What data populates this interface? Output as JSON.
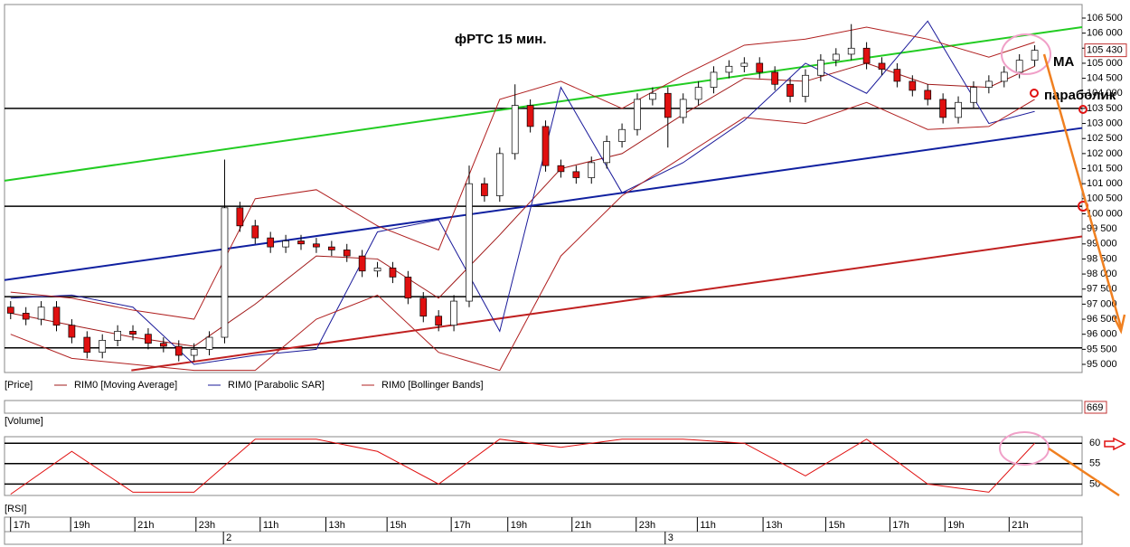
{
  "chart_data": {
    "type": "candlestick",
    "title": "фРТС   15 мин.",
    "price_name": "[Price]",
    "up_color": "#ffffff",
    "down_color": "#e01010",
    "open": [
      96900,
      96700,
      96500,
      96900,
      96300,
      95900,
      95400,
      95800,
      96100,
      96000,
      95700,
      95600,
      95300,
      95500,
      95900,
      100200,
      99600,
      99200,
      98900,
      99100,
      99000,
      98900,
      98800,
      98600,
      98100,
      98200,
      97900,
      97200,
      96600,
      96300,
      97100,
      101000,
      100600,
      102000,
      103600,
      102900,
      101600,
      101400,
      101200,
      101700,
      102400,
      102800,
      103800,
      104000,
      103200,
      103800,
      104200,
      104700,
      104900,
      105000,
      104700,
      104300,
      103900,
      104600,
      105100,
      105300,
      105500,
      105000,
      104800,
      104400,
      104100,
      103800,
      103200,
      103700,
      104200,
      104400,
      104700,
      105100
    ],
    "high": [
      97100,
      96900,
      97100,
      97100,
      96500,
      96100,
      96000,
      96300,
      96300,
      96200,
      95900,
      95800,
      95700,
      96100,
      101800,
      100400,
      99800,
      99400,
      99300,
      99300,
      99200,
      99100,
      99000,
      98800,
      98400,
      98400,
      98100,
      97400,
      96800,
      97300,
      101600,
      101200,
      102200,
      104300,
      103800,
      103100,
      101800,
      101600,
      101900,
      102600,
      103000,
      104000,
      104200,
      104200,
      104000,
      104400,
      104900,
      105100,
      105200,
      105200,
      104900,
      104500,
      104800,
      105300,
      105500,
      106300,
      105700,
      105200,
      105000,
      104600,
      104300,
      104000,
      103900,
      104400,
      104600,
      104900,
      105300,
      105600
    ],
    "low": [
      96500,
      96300,
      96300,
      96100,
      95700,
      95200,
      95200,
      95600,
      95800,
      95500,
      95400,
      95100,
      95100,
      95300,
      95700,
      99400,
      99000,
      98700,
      98700,
      98800,
      98700,
      98600,
      98400,
      97900,
      97900,
      97700,
      97000,
      96400,
      96100,
      96100,
      96900,
      100400,
      100400,
      101800,
      102700,
      101400,
      101200,
      101000,
      101000,
      101500,
      102200,
      102600,
      103600,
      102200,
      103000,
      103600,
      104000,
      104500,
      104700,
      104500,
      104100,
      103700,
      103700,
      104400,
      104900,
      105100,
      104800,
      104600,
      104200,
      103900,
      103600,
      103000,
      103000,
      103500,
      104000,
      104200,
      104500,
      104900
    ],
    "close": [
      96700,
      96500,
      96900,
      96300,
      95900,
      95400,
      95800,
      96100,
      96000,
      95700,
      95600,
      95300,
      95500,
      95900,
      100200,
      99600,
      99200,
      98900,
      99100,
      99000,
      98900,
      98800,
      98600,
      98100,
      98200,
      97900,
      97200,
      96600,
      96300,
      97100,
      101000,
      100600,
      102000,
      103600,
      102900,
      101600,
      101400,
      101200,
      101700,
      102400,
      102800,
      103800,
      104000,
      103200,
      103800,
      104200,
      104700,
      104900,
      105000,
      104700,
      104300,
      103900,
      104600,
      105100,
      105300,
      105500,
      105000,
      104800,
      104400,
      104100,
      103800,
      103200,
      103700,
      104200,
      104400,
      104700,
      105100,
      105430
    ],
    "last_label": "105 430",
    "series": [
      {
        "name": "RIM0 [Moving Average]",
        "color": "#a01818",
        "x": [
          0,
          4,
          8,
          12,
          16,
          20,
          24,
          28,
          32,
          36,
          40,
          44,
          48,
          52,
          56,
          60,
          64,
          67
        ],
        "values": [
          96700,
          96300,
          95900,
          95600,
          97000,
          98600,
          98500,
          97200,
          99300,
          101500,
          102000,
          103300,
          104500,
          104400,
          105000,
          104300,
          104200,
          104900
        ]
      },
      {
        "name": "RIM0 [Parabolic SAR]",
        "color": "#1a1a9a",
        "x": [
          0,
          4,
          8,
          12,
          16,
          20,
          24,
          28,
          32,
          36,
          40,
          44,
          48,
          52,
          56,
          60,
          64,
          67
        ],
        "values": [
          97200,
          97300,
          96900,
          95000,
          95300,
          95500,
          99400,
          99800,
          96100,
          104200,
          100700,
          101700,
          103100,
          105000,
          104000,
          106400,
          103000,
          103400
        ]
      },
      {
        "name": "RIM0 [Bollinger Bands]",
        "color": "#b02020",
        "x": [
          0,
          4,
          8,
          12,
          16,
          20,
          24,
          28,
          32,
          36,
          40,
          44,
          48,
          52,
          56,
          60,
          64,
          67
        ],
        "values": [
          97400,
          97200,
          96800,
          96500,
          100500,
          100800,
          99600,
          98800,
          103800,
          104400,
          103500,
          104600,
          105600,
          105800,
          106200,
          105800,
          105200,
          105700
        ],
        "lower": [
          96000,
          95200,
          95000,
          94800,
          94800,
          96500,
          97300,
          95400,
          94800,
          98600,
          100600,
          101900,
          103200,
          103000,
          103700,
          102800,
          102900,
          103800
        ]
      }
    ],
    "levels": [
      103500,
      100250,
      97250,
      95550
    ],
    "trend_lines": [
      {
        "color": "#22cc22",
        "x": [
          -0.4,
          70.1
        ],
        "y": [
          101100,
          106200
        ]
      },
      {
        "color": "#1020a0",
        "x": [
          -0.4,
          70.1
        ],
        "y": [
          97800,
          102850
        ]
      },
      {
        "color": "#c02020",
        "x": [
          7.9,
          70.1
        ],
        "y": [
          94800,
          99250
        ]
      }
    ],
    "annotations": [
      "MA",
      "параболик"
    ],
    "xlim": [
      -0.4,
      70.1
    ],
    "ylim": [
      94730,
      106950
    ],
    "yticks": [
      {
        "value": 95000,
        "label": "95 000"
      },
      {
        "value": 95500,
        "label": "95 500"
      },
      {
        "value": 96000,
        "label": "96 000"
      },
      {
        "value": 96500,
        "label": "96 500"
      },
      {
        "value": 97000,
        "label": "97 000"
      },
      {
        "value": 97500,
        "label": "97 500"
      },
      {
        "value": 98000,
        "label": "98 000"
      },
      {
        "value": 98500,
        "label": "98 500"
      },
      {
        "value": 99000,
        "label": "99 000"
      },
      {
        "value": 99500,
        "label": "99 500"
      },
      {
        "value": 100000,
        "label": "100 000"
      },
      {
        "value": 100500,
        "label": "100 500"
      },
      {
        "value": 101000,
        "label": "101 000"
      },
      {
        "value": 101500,
        "label": "101 500"
      },
      {
        "value": 102000,
        "label": "102 000"
      },
      {
        "value": 102500,
        "label": "102 500"
      },
      {
        "value": 103000,
        "label": "103 000"
      },
      {
        "value": 103500,
        "label": "103 500"
      },
      {
        "value": 104000,
        "label": "104 000"
      },
      {
        "value": 104500,
        "label": "104 500"
      },
      {
        "value": 105000,
        "label": "105 000"
      },
      {
        "value": 105500,
        "label": "105 500"
      },
      {
        "value": 106000,
        "label": "106 000"
      },
      {
        "value": 106500,
        "label": "106 500"
      }
    ],
    "xticks": [
      {
        "value": 0.47,
        "label": "17h"
      },
      {
        "value": 4.4,
        "label": "19h"
      },
      {
        "value": 8.6,
        "label": "21h"
      },
      {
        "value": 12.6,
        "label": "23h"
      },
      {
        "value": 16.8,
        "label": "11h"
      },
      {
        "value": 21.1,
        "label": "13h"
      },
      {
        "value": 25.1,
        "label": "15h"
      },
      {
        "value": 29.3,
        "label": "17h"
      },
      {
        "value": 33.0,
        "label": "19h"
      },
      {
        "value": 37.2,
        "label": "21h"
      },
      {
        "value": 41.4,
        "label": "23h"
      },
      {
        "value": 45.4,
        "label": "11h"
      },
      {
        "value": 49.7,
        "label": "13h"
      },
      {
        "value": 53.8,
        "label": "15h"
      },
      {
        "value": 58.0,
        "label": "17h"
      },
      {
        "value": 61.6,
        "label": "19h"
      },
      {
        "value": 65.8,
        "label": "21h"
      }
    ],
    "day_ticks": [
      {
        "value": 14.1,
        "label": "2"
      },
      {
        "value": 43.0,
        "label": "3"
      }
    ],
    "volume": {
      "name": "[Volume]",
      "last_label": "669"
    },
    "rsi": {
      "name": "[RSI]",
      "color": "#e01010",
      "x": [
        0,
        4,
        8,
        12,
        16,
        20,
        24,
        28,
        32,
        36,
        40,
        44,
        48,
        52,
        56,
        60,
        64,
        67
      ],
      "values": [
        47.5,
        58,
        48,
        48,
        61,
        61,
        58,
        50,
        61,
        59,
        61,
        61,
        60,
        52,
        61,
        50,
        48,
        60
      ],
      "ylim": [
        47.2,
        61.6
      ],
      "yticks": [
        60,
        55,
        50
      ]
    }
  }
}
